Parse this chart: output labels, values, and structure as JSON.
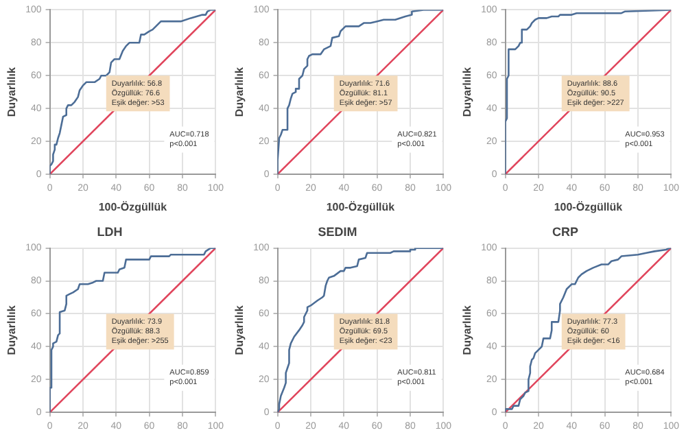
{
  "chart_data": [
    {
      "type": "line",
      "xlabel": "100-Özgüllük",
      "ylabel": "Duyarlılık",
      "xlim": [
        0,
        100
      ],
      "ylim": [
        0,
        100
      ],
      "xticks": [
        0,
        20,
        40,
        60,
        80,
        100
      ],
      "yticks": [
        0,
        20,
        40,
        60,
        80,
        100
      ],
      "grid": true,
      "marker": "none",
      "line_style": "solid",
      "annotations": [
        "Duyarlılık: 56.8",
        "Özgüllük: 76.6",
        "Eşik değer: >53",
        "AUC=0.718",
        "p<0.001"
      ],
      "series": [
        {
          "color": "#4c6d96",
          "x": [
            0,
            0,
            1,
            2,
            2,
            3,
            3,
            4,
            5,
            6,
            7,
            8,
            10,
            10,
            11,
            13,
            15,
            17,
            18,
            20,
            22,
            27,
            30,
            31,
            34,
            36,
            37,
            39,
            42,
            44,
            46,
            48,
            54,
            55,
            57,
            60,
            62,
            64,
            67,
            79,
            85,
            92,
            94,
            95,
            97,
            100
          ],
          "values": [
            0,
            5,
            6,
            8,
            12,
            15,
            18,
            18,
            22,
            25,
            30,
            35,
            36,
            40,
            42,
            42,
            44,
            47,
            51,
            54,
            56,
            56,
            58,
            60,
            60,
            62,
            68,
            70,
            70,
            75,
            78,
            80,
            80,
            85,
            85,
            87,
            88,
            90,
            93,
            93,
            95,
            97,
            97,
            99,
            100,
            100
          ]
        },
        {
          "color": "#e0455c",
          "x": [
            0,
            100
          ],
          "values": [
            0,
            100
          ]
        }
      ]
    },
    {
      "type": "line",
      "xlabel": "100-Özgüllük",
      "ylabel": "Duyarlılık",
      "xlim": [
        0,
        100
      ],
      "ylim": [
        0,
        100
      ],
      "xticks": [
        0,
        20,
        40,
        60,
        80,
        100
      ],
      "yticks": [
        0,
        20,
        40,
        60,
        80,
        100
      ],
      "grid": true,
      "marker": "none",
      "line_style": "solid",
      "annotations": [
        "Duyarlılık: 71.6",
        "Özgüllük: 81.1",
        "Eşik değer: >57",
        "AUC=0.821",
        "p<0.001"
      ],
      "series": [
        {
          "color": "#4c6d96",
          "x": [
            0,
            0,
            1,
            2,
            3,
            6,
            6,
            7,
            8,
            9,
            11,
            11,
            13,
            13,
            15,
            16,
            18,
            18,
            19,
            21,
            26,
            28,
            32,
            33,
            37,
            38,
            41,
            49,
            52,
            56,
            60,
            64,
            71,
            77,
            81,
            81,
            88,
            100
          ],
          "values": [
            0,
            8,
            22,
            24,
            27,
            27,
            40,
            42,
            46,
            49,
            50,
            52,
            52,
            58,
            60,
            64,
            66,
            70,
            72,
            73,
            73,
            76,
            78,
            83,
            84,
            87,
            90,
            90,
            92,
            92,
            93,
            94,
            94,
            96,
            97,
            99,
            100,
            100
          ]
        },
        {
          "color": "#e0455c",
          "x": [
            0,
            100
          ],
          "values": [
            0,
            100
          ]
        }
      ]
    },
    {
      "type": "line",
      "xlabel": "100-Özgüllük",
      "ylabel": "Duyarlılık",
      "xlim": [
        0,
        100
      ],
      "ylim": [
        0,
        100
      ],
      "xticks": [
        0,
        20,
        40,
        60,
        80,
        100
      ],
      "yticks": [
        0,
        20,
        40,
        60,
        80,
        100
      ],
      "grid": true,
      "marker": "none",
      "line_style": "solid",
      "annotations": [
        "Duyarlılık: 88.6",
        "Özgüllük: 90.5",
        "Eşik değer: >227",
        "AUC=0.953",
        "p<0.001"
      ],
      "series": [
        {
          "color": "#4c6d96",
          "x": [
            0,
            0,
            1,
            1,
            2,
            2,
            3,
            6,
            8,
            9,
            10,
            10,
            13,
            15,
            16,
            18,
            20,
            25,
            28,
            32,
            33,
            40,
            43,
            70,
            72,
            100
          ],
          "values": [
            0,
            32,
            34,
            58,
            60,
            76,
            76,
            76,
            78,
            80,
            80,
            88,
            88,
            90,
            92,
            94,
            95,
            95,
            96,
            96,
            97,
            97,
            98,
            98,
            99,
            100
          ]
        },
        {
          "color": "#e0455c",
          "x": [
            0,
            100
          ],
          "values": [
            0,
            100
          ]
        }
      ]
    },
    {
      "type": "line",
      "title": "LDH",
      "ylabel": "Duyarlılık",
      "xlim": [
        0,
        100
      ],
      "ylim": [
        0,
        100
      ],
      "xticks": [
        0,
        20,
        40,
        60,
        80,
        100
      ],
      "yticks": [
        0,
        20,
        40,
        60,
        80,
        100
      ],
      "grid": true,
      "marker": "none",
      "line_style": "solid",
      "annotations": [
        "Duyarlılık: 73.9",
        "Özgüllük: 88.3",
        "Eşik değer: >255",
        "AUC=0.859",
        "p<0.001"
      ],
      "series": [
        {
          "color": "#4c6d96",
          "x": [
            0,
            0,
            1,
            1,
            2,
            2,
            4,
            5,
            6,
            6,
            9,
            10,
            10,
            12,
            14,
            17,
            18,
            23,
            26,
            28,
            32,
            33,
            41,
            42,
            45,
            46,
            60,
            61,
            72,
            73,
            93,
            94,
            97,
            100
          ],
          "values": [
            0,
            15,
            15,
            38,
            40,
            42,
            43,
            47,
            48,
            61,
            62,
            66,
            71,
            72,
            73,
            75,
            78,
            78,
            79,
            80,
            80,
            85,
            85,
            87,
            88,
            93,
            93,
            95,
            95,
            96,
            96,
            98,
            100,
            100
          ]
        },
        {
          "color": "#e0455c",
          "x": [
            0,
            100
          ],
          "values": [
            0,
            100
          ]
        }
      ]
    },
    {
      "type": "line",
      "title": "SEDIM",
      "ylabel": "Duyarlılık",
      "xlim": [
        0,
        100
      ],
      "ylim": [
        0,
        100
      ],
      "xticks": [
        0,
        20,
        40,
        60,
        80,
        100
      ],
      "yticks": [
        0,
        20,
        40,
        60,
        80,
        100
      ],
      "grid": true,
      "marker": "none",
      "line_style": "solid",
      "annotations": [
        "Duyarlılık: 81.8",
        "Özgüllük: 69.5",
        "Eşik değer: <23",
        "AUC=0.811",
        "p<0.001"
      ],
      "series": [
        {
          "color": "#4c6d96",
          "x": [
            0,
            1,
            1,
            2,
            4,
            5,
            5,
            6,
            7,
            7,
            8,
            10,
            13,
            15,
            16,
            16,
            18,
            18,
            20,
            24,
            27,
            28,
            29,
            30,
            31,
            34,
            38,
            40,
            41,
            44,
            48,
            49,
            53,
            54,
            68,
            70,
            80,
            80,
            83,
            83,
            100
          ],
          "values": [
            0,
            2,
            5,
            10,
            15,
            18,
            24,
            27,
            30,
            38,
            42,
            46,
            50,
            53,
            55,
            58,
            62,
            64,
            65,
            68,
            70,
            71,
            77,
            80,
            82,
            83,
            86,
            86,
            88,
            88,
            89,
            93,
            94,
            97,
            97,
            98,
            98,
            99,
            99,
            100,
            100
          ]
        },
        {
          "color": "#e0455c",
          "x": [
            0,
            100
          ],
          "values": [
            0,
            100
          ]
        }
      ]
    },
    {
      "type": "line",
      "title": "CRP",
      "ylabel": "Duyarlılık",
      "xlim": [
        0,
        100
      ],
      "ylim": [
        0,
        100
      ],
      "xticks": [
        0,
        20,
        40,
        60,
        80,
        100
      ],
      "yticks": [
        0,
        20,
        40,
        60,
        80,
        100
      ],
      "grid": true,
      "marker": "none",
      "line_style": "solid",
      "annotations": [
        "Duyarlılık: 77.3",
        "Özgüllük: 60",
        "Eşik değer: <16",
        "AUC=0.684",
        "p<0.001"
      ],
      "series": [
        {
          "color": "#4c6d96",
          "x": [
            0,
            0,
            4,
            5,
            8,
            9,
            11,
            12,
            14,
            14,
            15,
            15,
            16,
            17,
            18,
            20,
            22,
            23,
            27,
            28,
            28,
            32,
            33,
            33,
            35,
            37,
            40,
            42,
            44,
            46,
            49,
            53,
            58,
            62,
            64,
            68,
            70,
            80,
            85,
            90,
            97,
            99,
            100
          ],
          "values": [
            0,
            2,
            2,
            4,
            4,
            8,
            10,
            12,
            13,
            20,
            24,
            28,
            32,
            33,
            36,
            38,
            40,
            45,
            45,
            50,
            55,
            55,
            62,
            66,
            70,
            75,
            78,
            78,
            82,
            84,
            86,
            88,
            90,
            90,
            92,
            93,
            95,
            96,
            97,
            98,
            99,
            100,
            100
          ]
        },
        {
          "color": "#e0455c",
          "x": [
            0,
            100
          ],
          "values": [
            0,
            100
          ]
        }
      ]
    }
  ]
}
